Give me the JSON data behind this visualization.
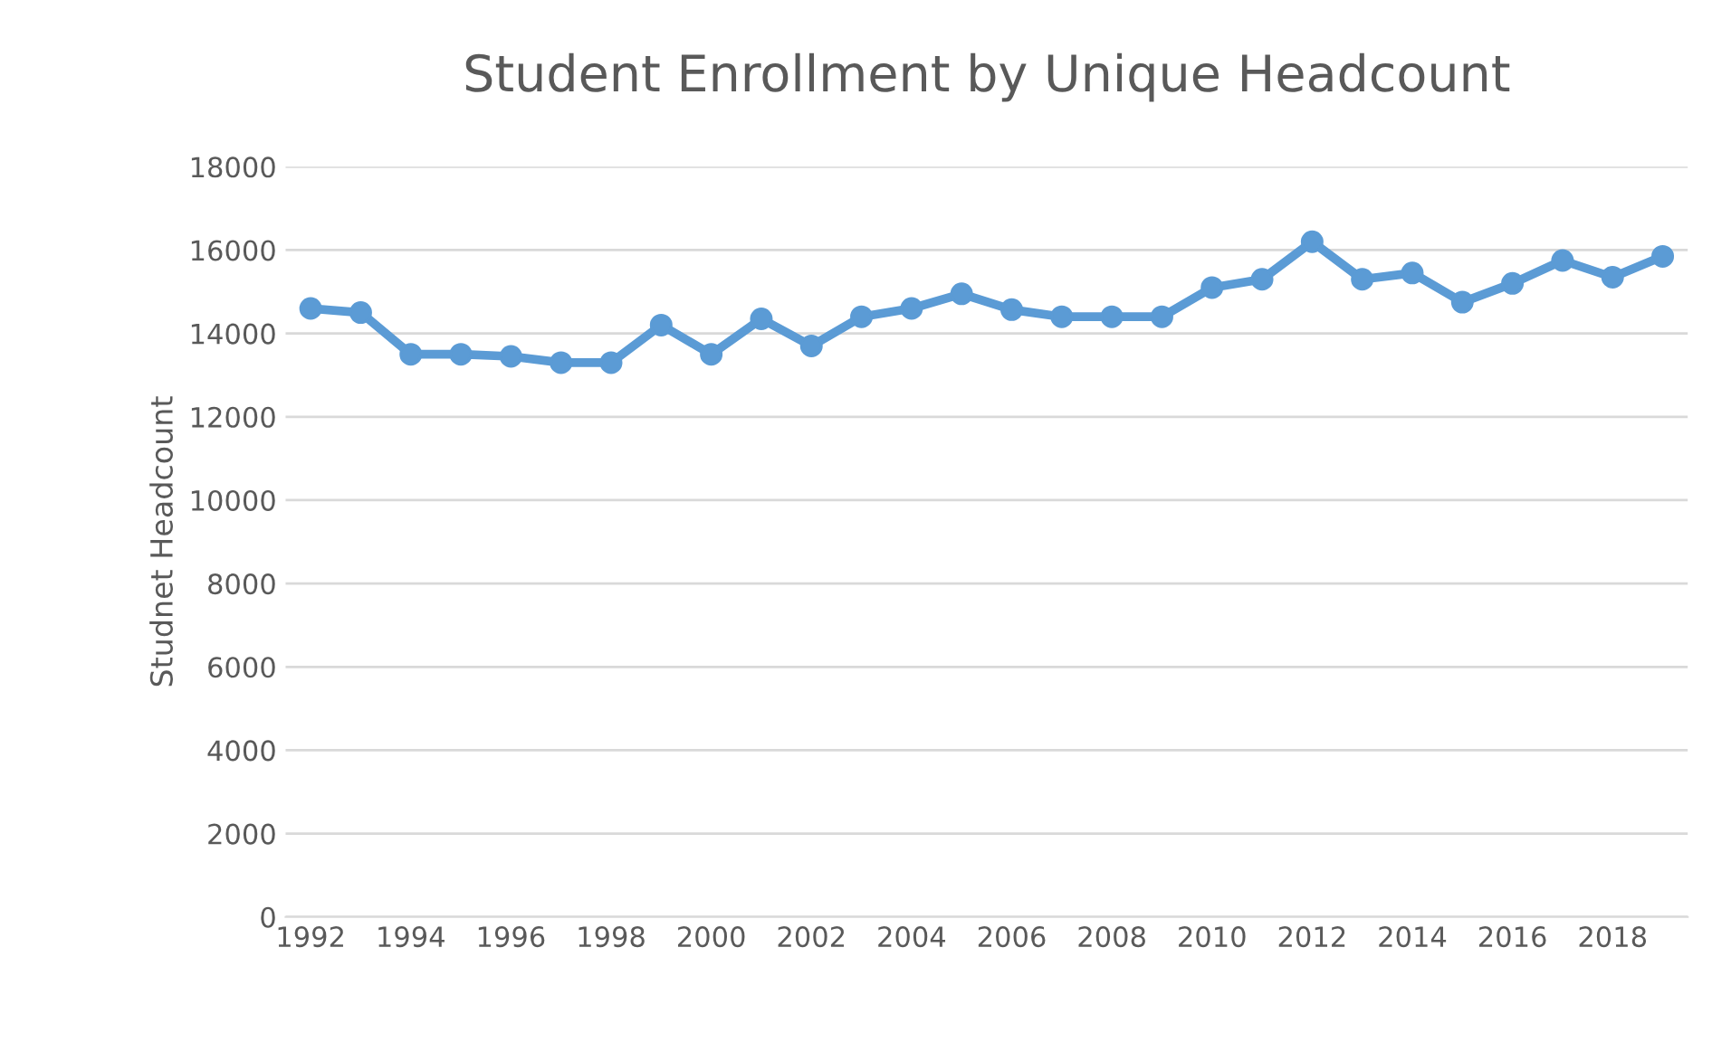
{
  "chart_data": {
    "type": "line",
    "title": "Student Enrollment by Unique Headcount",
    "ylabel": "Studnet Headcount",
    "categories": [
      "1992",
      null,
      "1994",
      null,
      "1996",
      null,
      "1998",
      null,
      "2000",
      null,
      "2002",
      null,
      "2004",
      null,
      "2006",
      null,
      "2008",
      null,
      "2010",
      null,
      "2012",
      null,
      "2014",
      null,
      "2016",
      null,
      "2018",
      null
    ],
    "series": [
      {
        "color": "#5b9bd5",
        "values": [
          14600,
          14500,
          13500,
          13500,
          13450,
          13300,
          13300,
          14200,
          13500,
          14350,
          13700,
          14400,
          14600,
          14950,
          14570,
          14400,
          14400,
          14400,
          15100,
          15300,
          16200,
          15300,
          15450,
          14750,
          15200,
          15750,
          15350,
          15850
        ]
      }
    ],
    "ylim": [
      0,
      18000
    ],
    "yticks": [
      0,
      2000,
      4000,
      6000,
      8000,
      10000,
      12000,
      14000,
      16000,
      18000
    ],
    "grid": "y",
    "marker": "circle",
    "line_style": "solid",
    "legend": false
  }
}
